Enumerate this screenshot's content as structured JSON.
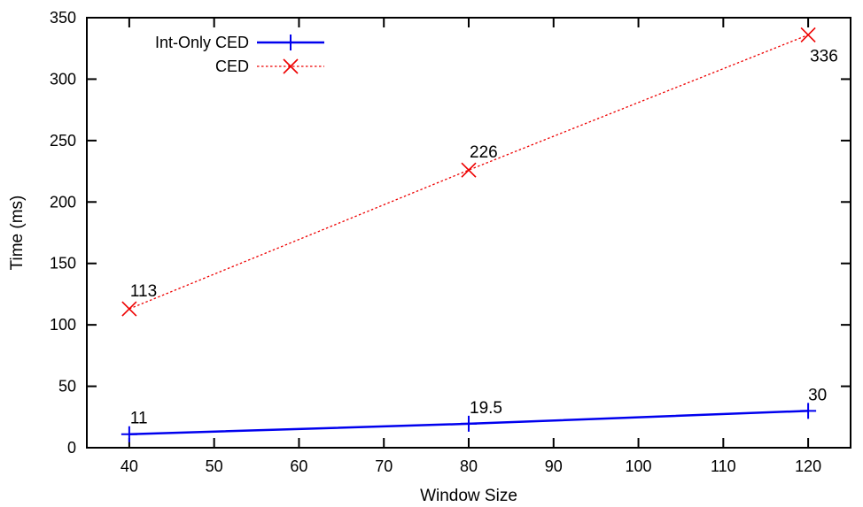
{
  "chart_data": {
    "type": "line",
    "title": "",
    "xlabel": "Window Size",
    "ylabel": "Time (ms)",
    "xlim": [
      35,
      125
    ],
    "ylim": [
      0,
      350
    ],
    "xticks": [
      40,
      50,
      60,
      70,
      80,
      90,
      100,
      110,
      120
    ],
    "yticks": [
      0,
      50,
      100,
      150,
      200,
      250,
      300,
      350
    ],
    "x": [
      40,
      80,
      120
    ],
    "series": [
      {
        "name": "Int-Only CED",
        "values": [
          11,
          19.5,
          30
        ],
        "labels": [
          "11",
          "19.5",
          "30"
        ],
        "color": "#0000ee",
        "line_style": "solid",
        "marker": "plus"
      },
      {
        "name": "CED",
        "values": [
          113,
          226,
          336
        ],
        "labels": [
          "113",
          "226",
          "336"
        ],
        "color": "#ee0000",
        "line_style": "dotted",
        "marker": "cross"
      }
    ],
    "grid": false,
    "legend_position": "top-left"
  }
}
